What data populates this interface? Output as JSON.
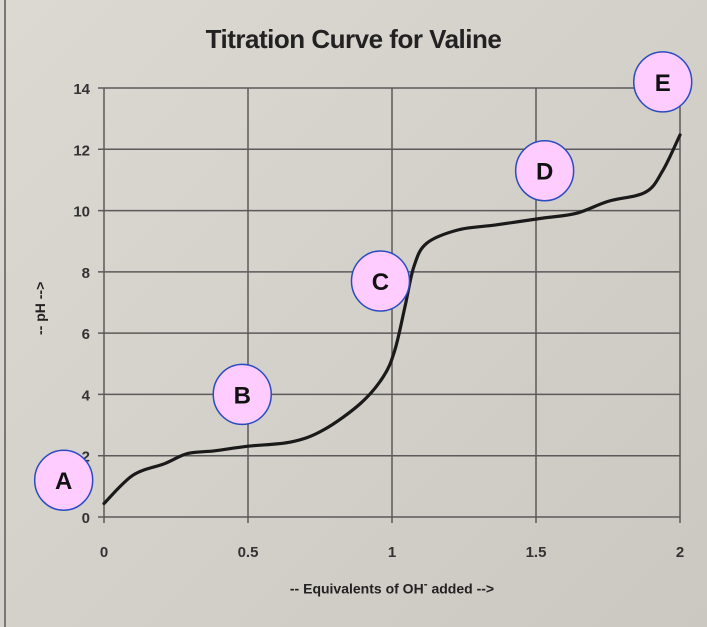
{
  "chart_data": {
    "type": "line",
    "title": "Titration Curve for Valine",
    "xlabel": "-- Equivalents of OH",
    "xlabel_sup": "-",
    "xlabel_suffix": " added -->",
    "ylabel": "-- pH -->",
    "xlim": [
      0,
      2
    ],
    "ylim": [
      0,
      14
    ],
    "grid": true,
    "x_ticks": [
      "0",
      "0.5",
      "1",
      "1.5",
      "2"
    ],
    "y_ticks": [
      "0",
      "2",
      "4",
      "6",
      "8",
      "10",
      "12",
      "14"
    ],
    "series": [
      {
        "x": [
          0,
          0.1,
          0.21,
          0.29,
          0.385,
          0.5,
          0.65,
          0.76,
          0.89,
          0.97,
          1.01,
          1.045,
          1.076,
          1.12,
          1.23,
          1.36,
          1.52,
          1.64,
          1.75,
          1.88,
          1.94,
          2.0
        ],
        "y": [
          0.44,
          1.36,
          1.74,
          2.07,
          2.16,
          2.31,
          2.45,
          2.83,
          3.7,
          4.58,
          5.45,
          6.86,
          8.17,
          8.93,
          9.37,
          9.53,
          9.75,
          9.91,
          10.3,
          10.6,
          11.3,
          12.47
        ]
      }
    ],
    "annotations": [
      {
        "label": "A",
        "x": -0.14,
        "y": 1.2
      },
      {
        "label": "B",
        "x": 0.48,
        "y": 4.0
      },
      {
        "label": "C",
        "x": 0.96,
        "y": 7.7
      },
      {
        "label": "D",
        "x": 1.53,
        "y": 11.3
      },
      {
        "label": "E",
        "x": 1.94,
        "y": 14.2
      }
    ],
    "colors": {
      "line": "#1a1a1a",
      "grid": "#5a5a5a",
      "marker_fill": "#ffccff",
      "marker_border": "#2a4cc0"
    }
  }
}
